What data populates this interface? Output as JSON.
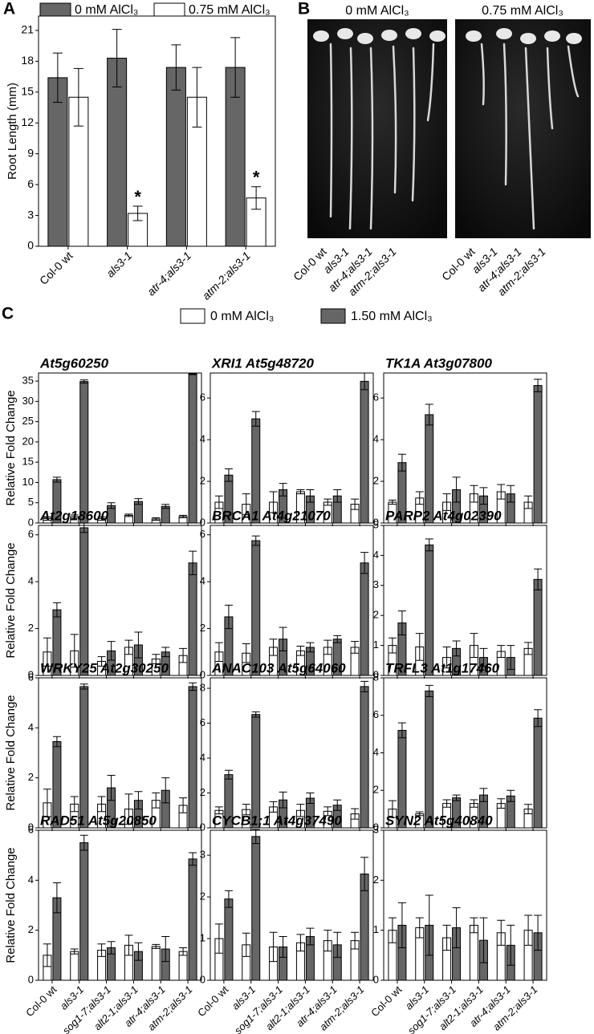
{
  "chart_data": [
    {
      "type": "bar",
      "label": "A",
      "y_label": "Root Length (mm)",
      "categories": [
        "Col-0 wt",
        "als3-1",
        "atr-4;als3-1",
        "atm-2;als3-1"
      ],
      "series": [
        {
          "name": "0 mM AlCl₃",
          "color": "#666666",
          "values": [
            16.4,
            18.3,
            17.4,
            17.4
          ],
          "errors": [
            2.4,
            2.8,
            2.2,
            2.9
          ]
        },
        {
          "name": "0.75 mM AlCl₃",
          "color": "#ffffff",
          "values": [
            14.5,
            3.2,
            14.5,
            4.7
          ],
          "errors": [
            2.8,
            0.7,
            2.9,
            1.1
          ],
          "markers": [
            null,
            "*",
            null,
            "*"
          ]
        }
      ],
      "ylim": [
        0,
        22.4
      ],
      "yticks": [
        0,
        3,
        6,
        9,
        12,
        15,
        18,
        21
      ]
    },
    {
      "type": "bar",
      "title": "At5g60250",
      "y_label": "Relative Fold Change",
      "categories": [
        null,
        null,
        null,
        null,
        null,
        null
      ],
      "series": [
        {
          "color": "#ffffff",
          "values": [
            1.1,
            1.6,
            1.1,
            1.9,
            1.0,
            1.6
          ],
          "errors": [
            0.4,
            0.4,
            0.4,
            0.3,
            0.3,
            0.3
          ]
        },
        {
          "color": "#666666",
          "values": [
            10.7,
            34.9,
            4.3,
            5.3,
            4.1,
            36.8
          ],
          "errors": [
            0.6,
            0.4,
            0.7,
            0.7,
            0.5,
            0.2
          ]
        }
      ],
      "ylim": [
        0,
        37
      ],
      "yticks": [
        0,
        5,
        10,
        15,
        20,
        25,
        30,
        35
      ]
    },
    {
      "type": "bar",
      "title": "XRI1 At5g48720",
      "categories": [
        null,
        null,
        null,
        null,
        null,
        null
      ],
      "series": [
        {
          "color": "#ffffff",
          "values": [
            1.0,
            0.9,
            1.0,
            1.5,
            1.0,
            0.9
          ],
          "errors": [
            0.3,
            0.5,
            0.5,
            0.1,
            0.15,
            0.25
          ]
        },
        {
          "color": "#666666",
          "values": [
            2.3,
            5.0,
            1.6,
            1.3,
            1.3,
            6.8
          ],
          "errors": [
            0.3,
            0.35,
            0.3,
            0.3,
            0.3,
            0.4
          ]
        }
      ],
      "ylim": [
        0,
        7.2
      ],
      "yticks": [
        0,
        2,
        4,
        6
      ]
    },
    {
      "type": "bar",
      "title": "TK1A At3g07800",
      "categories": [
        null,
        null,
        null,
        null,
        null,
        null
      ],
      "series": [
        {
          "color": "#ffffff",
          "values": [
            1.0,
            1.2,
            1.0,
            1.4,
            1.5,
            1.0
          ],
          "errors": [
            0.1,
            0.3,
            0.4,
            0.4,
            0.35,
            0.3
          ]
        },
        {
          "color": "#666666",
          "values": [
            2.9,
            5.2,
            1.6,
            1.3,
            1.4,
            6.6
          ],
          "errors": [
            0.4,
            0.5,
            0.6,
            0.4,
            0.4,
            0.3
          ]
        }
      ],
      "ylim": [
        0,
        7.2
      ],
      "yticks": [
        0,
        2,
        4,
        6
      ]
    },
    {
      "type": "bar",
      "title": "At2g18600",
      "y_label": "Relative Fold Change",
      "categories": [
        null,
        null,
        null,
        null,
        null,
        null
      ],
      "series": [
        {
          "color": "#ffffff",
          "values": [
            1.0,
            1.05,
            0.6,
            1.2,
            0.7,
            0.85
          ],
          "errors": [
            0.6,
            0.7,
            0.2,
            0.3,
            0.2,
            0.3
          ]
        },
        {
          "color": "#666666",
          "values": [
            2.8,
            6.3,
            1.05,
            1.3,
            1.0,
            4.8
          ],
          "errors": [
            0.3,
            0.2,
            0.4,
            0.55,
            0.2,
            0.5
          ]
        }
      ],
      "ylim": [
        0,
        6.4
      ],
      "yticks": [
        0,
        2,
        4,
        6
      ]
    },
    {
      "type": "bar",
      "title": "BRCA1 At4g21070",
      "categories": [
        null,
        null,
        null,
        null,
        null,
        null
      ],
      "series": [
        {
          "color": "#ffffff",
          "values": [
            1.0,
            0.95,
            1.2,
            1.05,
            1.2,
            1.2
          ],
          "errors": [
            0.4,
            0.4,
            0.35,
            0.2,
            0.3,
            0.25
          ]
        },
        {
          "color": "#666666",
          "values": [
            2.5,
            5.75,
            1.55,
            1.2,
            1.55,
            4.8
          ],
          "errors": [
            0.5,
            0.2,
            0.5,
            0.2,
            0.15,
            0.45
          ]
        }
      ],
      "ylim": [
        0,
        6.4
      ],
      "yticks": [
        0,
        2,
        4,
        6
      ]
    },
    {
      "type": "bar",
      "title": "PARP2 At4g02390",
      "categories": [
        null,
        null,
        null,
        null,
        null,
        null
      ],
      "series": [
        {
          "color": "#ffffff",
          "values": [
            1.0,
            0.95,
            0.6,
            1.0,
            0.8,
            0.9
          ],
          "errors": [
            0.25,
            0.45,
            0.35,
            0.4,
            0.2,
            0.2
          ]
        },
        {
          "color": "#666666",
          "values": [
            1.75,
            4.35,
            0.9,
            0.6,
            0.6,
            3.2
          ],
          "errors": [
            0.4,
            0.2,
            0.25,
            0.3,
            0.4,
            0.35
          ]
        }
      ],
      "ylim": [
        0,
        5
      ],
      "yticks": [
        0,
        1,
        2,
        3,
        4,
        5
      ]
    },
    {
      "type": "bar",
      "title": "WRKY25 At2g30250",
      "y_label": "Relative Fold Change",
      "categories": [
        null,
        null,
        null,
        null,
        null,
        null
      ],
      "series": [
        {
          "color": "#ffffff",
          "values": [
            1.0,
            0.95,
            0.95,
            0.75,
            1.1,
            0.9
          ],
          "errors": [
            0.55,
            0.3,
            0.3,
            0.6,
            0.3,
            0.3
          ]
        },
        {
          "color": "#666666",
          "values": [
            3.45,
            5.65,
            1.6,
            1.1,
            1.5,
            5.65
          ],
          "errors": [
            0.2,
            0.1,
            0.5,
            0.35,
            0.5,
            0.15
          ]
        }
      ],
      "ylim": [
        0,
        6
      ],
      "yticks": [
        0,
        2,
        4,
        6
      ]
    },
    {
      "type": "bar",
      "title": "ANAC103 At5g64060",
      "categories": [
        null,
        null,
        null,
        null,
        null,
        null
      ],
      "series": [
        {
          "color": "#ffffff",
          "values": [
            1.0,
            1.05,
            1.2,
            1.0,
            0.95,
            0.8
          ],
          "errors": [
            0.2,
            0.3,
            0.3,
            0.35,
            0.25,
            0.3
          ]
        },
        {
          "color": "#666666",
          "values": [
            3.05,
            6.5,
            1.6,
            1.7,
            1.3,
            8.1
          ],
          "errors": [
            0.25,
            0.15,
            0.45,
            0.3,
            0.3,
            0.3
          ]
        }
      ],
      "ylim": [
        0,
        8.6
      ],
      "yticks": [
        0,
        2,
        4,
        6,
        8
      ]
    },
    {
      "type": "bar",
      "title": "TRFL3 At1g17460",
      "categories": [
        null,
        null,
        null,
        null,
        null,
        null
      ],
      "series": [
        {
          "color": "#ffffff",
          "values": [
            1.0,
            0.75,
            1.3,
            1.3,
            1.3,
            1.0
          ],
          "errors": [
            0.45,
            0.1,
            0.2,
            0.2,
            0.25,
            0.25
          ]
        },
        {
          "color": "#666666",
          "values": [
            5.2,
            7.3,
            1.6,
            1.75,
            1.7,
            5.85
          ],
          "errors": [
            0.4,
            0.3,
            0.15,
            0.35,
            0.3,
            0.45
          ]
        }
      ],
      "ylim": [
        0,
        8
      ],
      "yticks": [
        0,
        2,
        4,
        6,
        8
      ]
    },
    {
      "type": "bar",
      "title": "RAD51 At5g20850",
      "y_label": "Relative Fold Change",
      "categories": [
        "Col-0 wt",
        "als3-1",
        "sog1-7;als3-1",
        "alt2-1;als3-1",
        "atr-4;als3-1",
        "atm-2;als3-1"
      ],
      "series": [
        {
          "color": "#ffffff",
          "values": [
            1.0,
            1.15,
            1.2,
            1.4,
            1.35,
            1.15
          ],
          "errors": [
            0.45,
            0.1,
            0.25,
            0.4,
            0.08,
            0.15
          ]
        },
        {
          "color": "#666666",
          "values": [
            3.3,
            5.5,
            1.3,
            1.15,
            1.25,
            4.85
          ],
          "errors": [
            0.6,
            0.3,
            0.25,
            0.35,
            0.5,
            0.25
          ]
        }
      ],
      "ylim": [
        0,
        6
      ],
      "yticks": [
        0,
        2,
        4,
        6
      ]
    },
    {
      "type": "bar",
      "title": "CYCB1;1 At4g37490",
      "categories": [
        "Col-0 wt",
        "als3-1",
        "sog1-7;als3-1",
        "alt2-1;als3-1",
        "atr-4;als3-1",
        "atm-2;als3-1"
      ],
      "series": [
        {
          "color": "#ffffff",
          "values": [
            1.0,
            0.85,
            0.8,
            0.9,
            0.95,
            0.95
          ],
          "errors": [
            0.35,
            0.28,
            0.35,
            0.2,
            0.25,
            0.2
          ]
        },
        {
          "color": "#666666",
          "values": [
            1.95,
            3.45,
            0.8,
            1.05,
            0.85,
            2.55
          ],
          "errors": [
            0.2,
            0.17,
            0.25,
            0.2,
            0.3,
            0.4
          ]
        }
      ],
      "ylim": [
        0,
        3.6
      ],
      "yticks": [
        0,
        1,
        2,
        3
      ]
    },
    {
      "type": "bar",
      "title": "SYN2 At5g40840",
      "categories": [
        "Col-0 wt",
        "als3-1",
        "sog1-7;als3-1",
        "alt2-1;als3-1",
        "atr-4;als3-1",
        "atm-2;als3-1"
      ],
      "series": [
        {
          "color": "#ffffff",
          "values": [
            1.0,
            1.05,
            0.85,
            1.1,
            0.95,
            1.0
          ],
          "errors": [
            0.25,
            0.2,
            0.25,
            0.15,
            0.25,
            0.3
          ]
        },
        {
          "color": "#666666",
          "values": [
            1.1,
            1.1,
            1.05,
            0.8,
            0.7,
            0.95
          ],
          "errors": [
            0.45,
            0.6,
            0.4,
            0.45,
            0.4,
            0.35
          ]
        }
      ],
      "ylim": [
        0,
        3
      ],
      "yticks": [
        0,
        1,
        2,
        3
      ]
    }
  ],
  "photo_panel": {
    "label": "B",
    "images": [
      {
        "title": "0 mM AlCl₃",
        "labels": [
          "Col-0 wt",
          "als3-1",
          "atr-4;als3-1",
          "atm-2;als3-1"
        ]
      },
      {
        "title": "0.75 mM AlCl₃",
        "labels": [
          "Col-0 wt",
          "als3-1",
          "atr-4;als3-1",
          "atm-2;als3-1"
        ]
      }
    ]
  },
  "panel_c": {
    "label": "C",
    "legend": [
      {
        "name": "0 mM AlCl₃",
        "color": "#ffffff"
      },
      {
        "name": "1.50 mM AlCl₃",
        "color": "#666666"
      }
    ]
  }
}
